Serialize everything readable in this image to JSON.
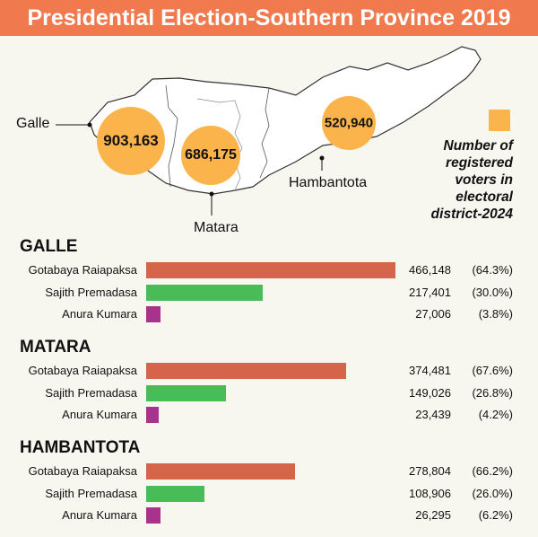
{
  "banner": {
    "title": "Presidential Election-Southern Province 2019"
  },
  "map": {
    "districts": [
      {
        "name": "Galle",
        "registered_voters": "903,163"
      },
      {
        "name": "Matara",
        "registered_voters": "686,175"
      },
      {
        "name": "Hambantota",
        "registered_voters": "520,940"
      }
    ],
    "legend": {
      "line1": "Number of",
      "line2": "registered",
      "line3": "voters in",
      "line4": "electoral",
      "line5": "district-2024"
    }
  },
  "colors": {
    "banner": "#f07a4e",
    "bubble": "#fbb44c",
    "gotabaya": "#d4654a",
    "sajith": "#47bc57",
    "anura": "#a8338c"
  },
  "chart_data": [
    {
      "type": "bar",
      "title": "GALLE",
      "categories": [
        "Gotabaya Raiapaksa",
        "Sajith Premadasa",
        "Anura Kumara"
      ],
      "values": [
        466148,
        217401,
        27006
      ],
      "value_labels": [
        "466,148",
        "217,401",
        "27,006"
      ],
      "percent_labels": [
        "(64.3%)",
        "(30.0%)",
        "(3.8%)"
      ]
    },
    {
      "type": "bar",
      "title": "MATARA",
      "categories": [
        "Gotabaya Raiapaksa",
        "Sajith Premadasa",
        "Anura Kumara"
      ],
      "values": [
        374481,
        149026,
        23439
      ],
      "value_labels": [
        "374,481",
        "149,026",
        "23,439"
      ],
      "percent_labels": [
        "(67.6%)",
        "(26.8%)",
        "(4.2%)"
      ]
    },
    {
      "type": "bar",
      "title": "HAMBANTOTA",
      "categories": [
        "Gotabaya Raiapaksa",
        "Sajith Premadasa",
        "Anura Kumara"
      ],
      "values": [
        278804,
        108906,
        26295
      ],
      "value_labels": [
        "278,804",
        "108,906",
        "26,295"
      ],
      "percent_labels": [
        "(66.2%)",
        "(26.0%)",
        "(6.2%)"
      ]
    }
  ]
}
